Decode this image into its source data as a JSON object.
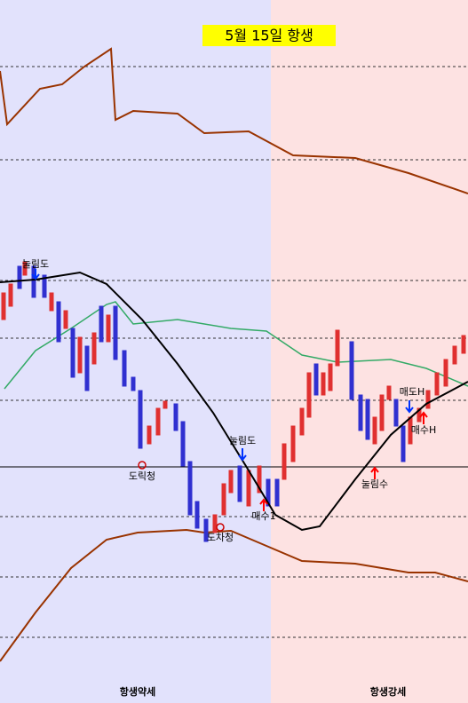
{
  "header": {
    "title": "5월 15일 항생"
  },
  "annotations": [
    "눌림도",
    "도릭청",
    "눌림도",
    "도차청",
    "매수1",
    "눌림수",
    "매도H",
    "매수H"
  ],
  "zones": {
    "left": "항생약세",
    "right": "항생강세"
  }
}
